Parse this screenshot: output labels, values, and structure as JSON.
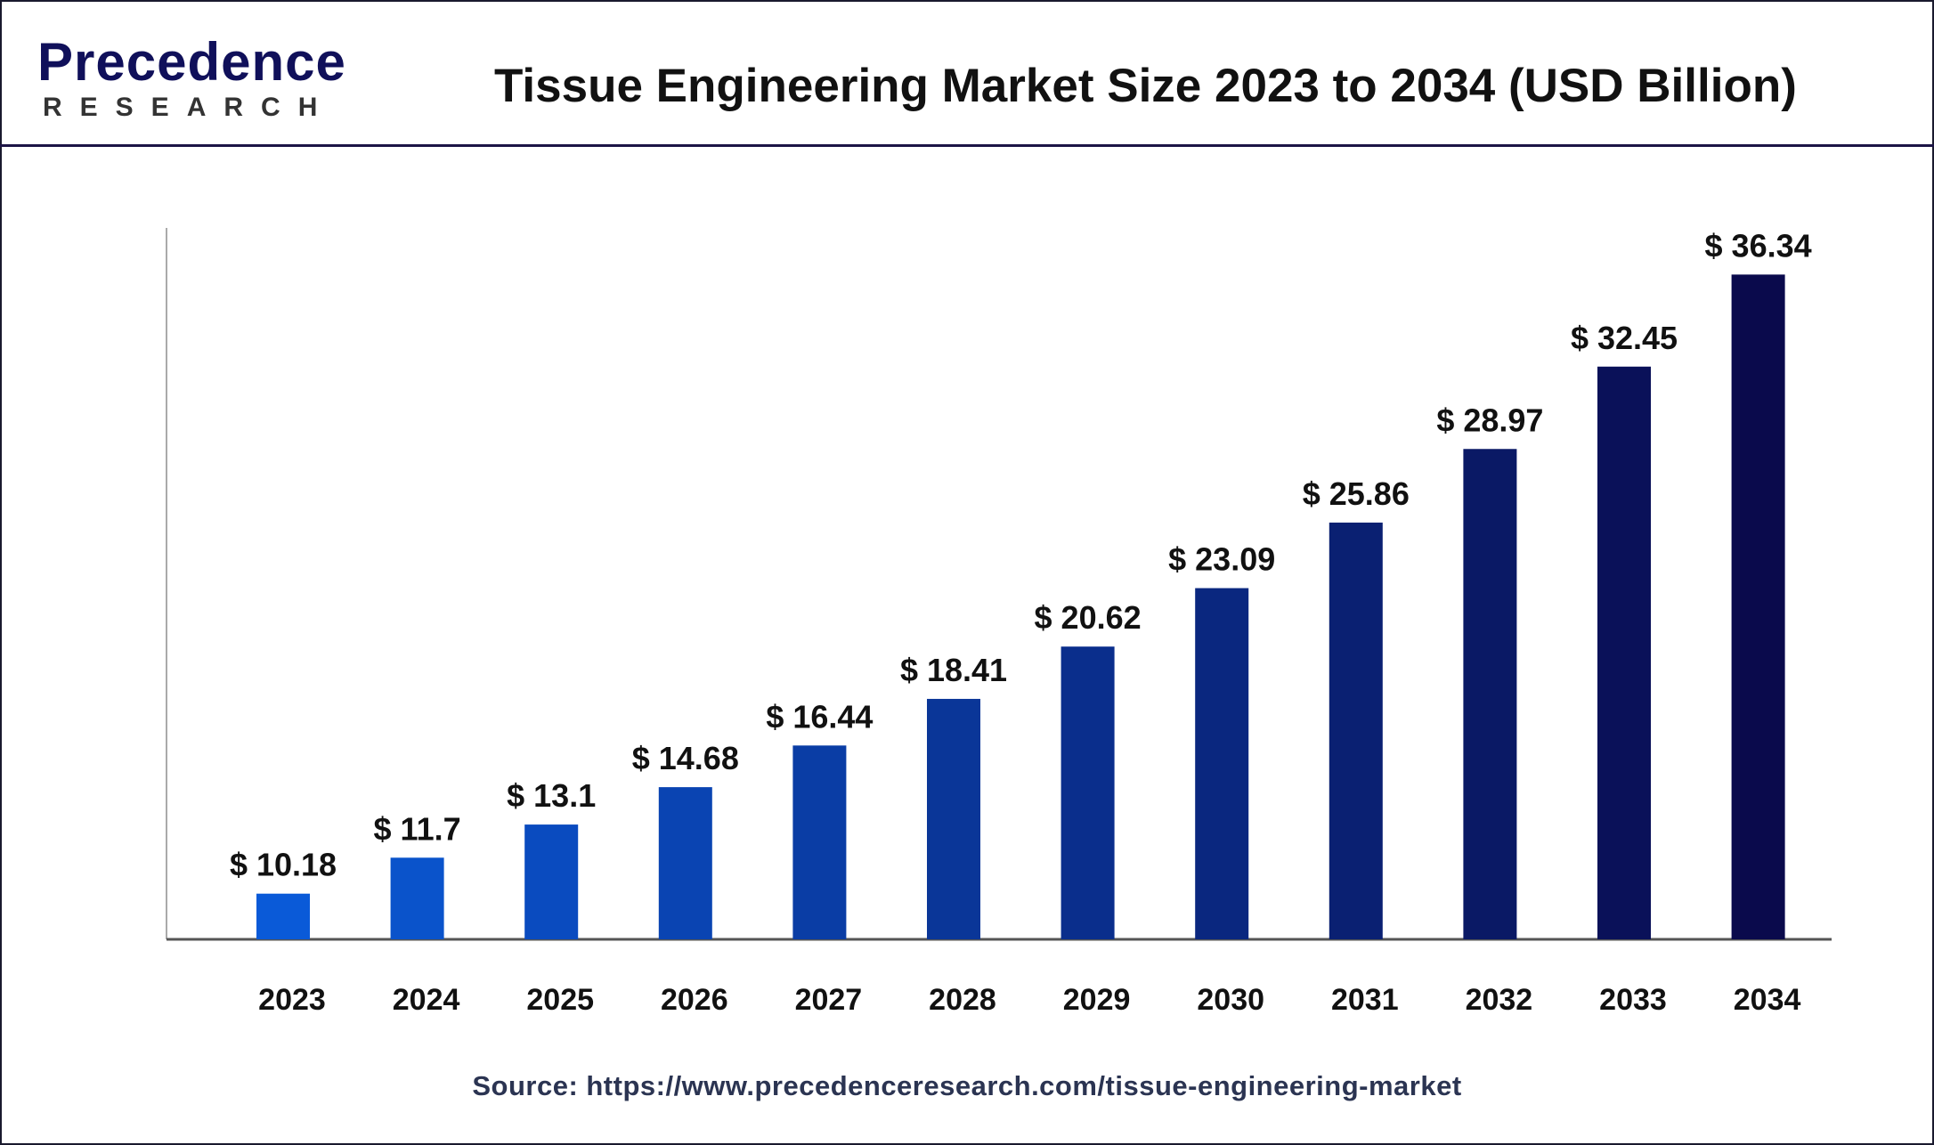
{
  "logo": {
    "text": "Precedence",
    "sub": "RESEARCH"
  },
  "title": "Tissue Engineering Market Size 2023 to 2034 (USD Billion)",
  "source": "Source: https://www.precedenceresearch.com/tissue-engineering-market",
  "colors": {
    "bar_start": "#0a5ad8",
    "bar_end": "#0a0a4c",
    "axis": "#555555"
  },
  "chart_data": {
    "type": "bar",
    "title": "Tissue Engineering Market Size 2023 to 2034 (USD Billion)",
    "categories": [
      "2023",
      "2024",
      "2025",
      "2026",
      "2027",
      "2028",
      "2029",
      "2030",
      "2031",
      "2032",
      "2033",
      "2034"
    ],
    "values": [
      10.18,
      11.7,
      13.1,
      14.68,
      16.44,
      18.41,
      20.62,
      23.09,
      25.86,
      28.97,
      32.45,
      36.34
    ],
    "labels": [
      "$ 10.18",
      "$ 11.7",
      "$ 13.1",
      "$ 14.68",
      "$ 16.44",
      "$ 18.41",
      "$ 20.62",
      "$ 23.09",
      "$ 25.86",
      "$ 28.97",
      "$ 32.45",
      "$ 36.34"
    ],
    "xlabel": "",
    "ylabel": "",
    "grid": false,
    "legend": "none"
  }
}
